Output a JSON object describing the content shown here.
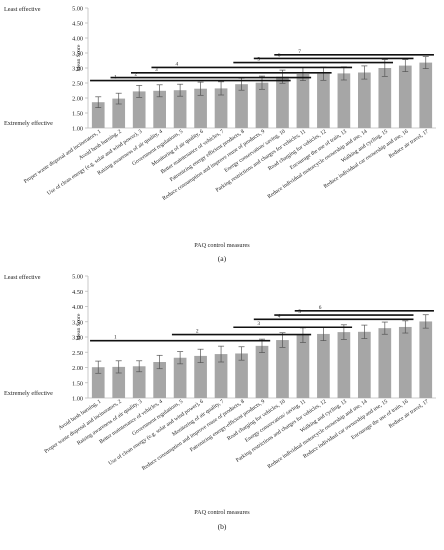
{
  "chart_data": [
    {
      "type": "bar",
      "panel_label": "(a)",
      "ylabel": "Mean Score",
      "xlabel": "PAQ control measures",
      "top_label": "Least effective",
      "bottom_label": "Extremely effective",
      "ylim": [
        1.0,
        5.0
      ],
      "yticks": [
        "1.00",
        "1.50",
        "2.00",
        "2.50",
        "3.00",
        "3.50",
        "4.00",
        "4.50",
        "5.00"
      ],
      "grid": false,
      "bar_color": "#a6a6a6",
      "categories": [
        "Proper waste disposal and incinerators, 1",
        "Avoid bush burning, 2",
        "Use of clean energy (e.g. solar and wind power), 3",
        "Raising awareness of air quality, 4",
        "Government regulations, 5",
        "Monitoring of air quality, 6",
        "Better maintenance of vehicles, 7",
        "Patronizing energy efficient products, 8",
        "Reduce consumption and improve reuse of products, 9",
        "Energy conservation/ saving, 10",
        "Parking restrictions and charges for vehicles, 11",
        "Road charging for vehicles, 12",
        "Encourage the use of train, 13",
        "Reduce individual motorcycle ownership and use, 14",
        "Walking and cycling, 15",
        "Reduce individual car ownership and use, 16",
        "Reduce air travel, 17"
      ],
      "values": [
        1.86,
        1.98,
        2.22,
        2.24,
        2.26,
        2.31,
        2.32,
        2.46,
        2.51,
        2.71,
        2.8,
        2.81,
        2.82,
        2.85,
        3.0,
        3.08,
        3.18
      ],
      "errors": [
        0.18,
        0.18,
        0.2,
        0.2,
        0.2,
        0.22,
        0.22,
        0.2,
        0.22,
        0.22,
        0.22,
        0.22,
        0.22,
        0.22,
        0.28,
        0.2,
        0.2
      ],
      "groups": [
        {
          "label": "1",
          "from": 1,
          "to": 10,
          "level": 2.58
        },
        {
          "label": "2",
          "from": 2,
          "to": 11,
          "level": 2.68
        },
        {
          "label": "3",
          "from": 3,
          "to": 12,
          "level": 2.84
        },
        {
          "label": "4",
          "from": 4,
          "to": 13,
          "level": 3.02
        },
        {
          "label": "5",
          "from": 8,
          "to": 15,
          "level": 3.18
        },
        {
          "label": "6",
          "from": 9,
          "to": 16,
          "level": 3.32
        },
        {
          "label": "7",
          "from": 10,
          "to": 17,
          "level": 3.44
        }
      ]
    },
    {
      "type": "bar",
      "panel_label": "(b)",
      "ylabel": "Mean Score",
      "xlabel": "PAQ control measures",
      "top_label": "Least effective",
      "bottom_label": "Extremely effective",
      "ylim": [
        1.0,
        5.0
      ],
      "yticks": [
        "1.00",
        "1.50",
        "2.00",
        "2.50",
        "3.00",
        "3.50",
        "4.00",
        "4.50",
        "5.00"
      ],
      "grid": false,
      "bar_color": "#a6a6a6",
      "categories": [
        "Avoid bush burning, 1",
        "Proper waste disposal and incinerators, 2",
        "Raising awareness of air quality, 3",
        "Better maintenance of vehicles, 4",
        "Government regulations, 5",
        "Use of clean energy (e.g. solar and wind power), 6",
        "Monitoring of air quality, 7",
        "Reduce consumption and improve reuse of products, 8",
        "Patronizing energy-efficient products, 9",
        "Road charging for vehicles, 10",
        "Energy conservation/ saving, 11",
        "Parking restrictions and charges for vehicles, 12",
        "Walking and cycling, 13",
        "Reduce individual motorcycle ownership and use, 14",
        "Reduce individual car ownership and use, 15",
        "Encourage the use of train, 16",
        "Reduce air travel, 17"
      ],
      "values": [
        2.01,
        2.02,
        2.04,
        2.18,
        2.32,
        2.38,
        2.44,
        2.46,
        2.71,
        2.9,
        3.06,
        3.1,
        3.16,
        3.17,
        3.29,
        3.33,
        3.51
      ],
      "errors": [
        0.2,
        0.2,
        0.18,
        0.22,
        0.2,
        0.22,
        0.26,
        0.22,
        0.22,
        0.24,
        0.24,
        0.22,
        0.24,
        0.22,
        0.2,
        0.2,
        0.22
      ],
      "groups": [
        {
          "label": "1",
          "from": 1,
          "to": 9,
          "level": 2.88
        },
        {
          "label": "2",
          "from": 5,
          "to": 11,
          "level": 3.08
        },
        {
          "label": "3",
          "from": 8,
          "to": 13,
          "level": 3.32
        },
        {
          "label": "4",
          "from": 9,
          "to": 16,
          "level": 3.58
        },
        {
          "label": "5",
          "from": 10,
          "to": 16,
          "level": 3.72
        },
        {
          "label": "6",
          "from": 11,
          "to": 17,
          "level": 3.86
        }
      ]
    }
  ]
}
